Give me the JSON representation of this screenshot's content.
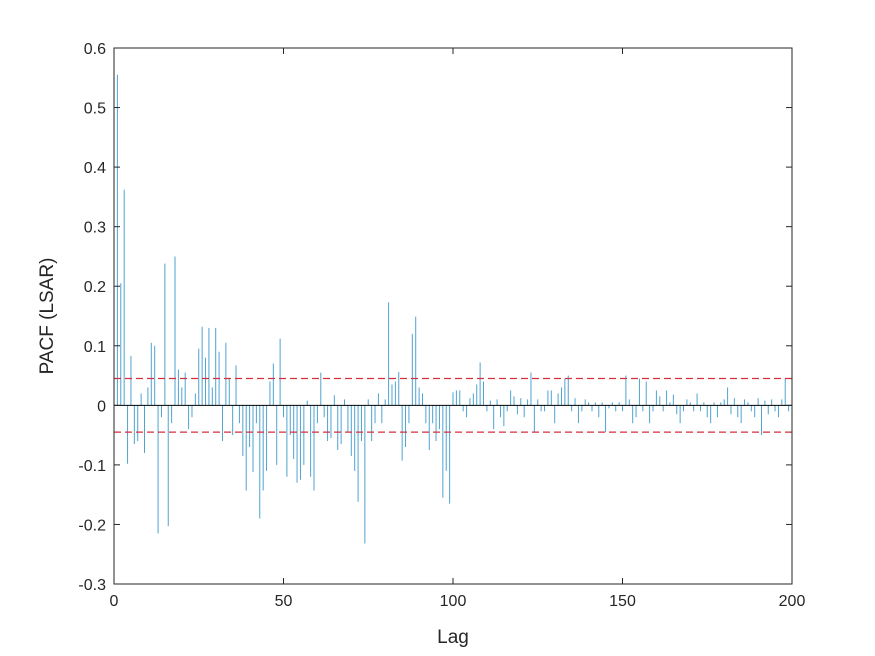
{
  "chart_data": {
    "type": "bar",
    "xlabel": "Lag",
    "ylabel": "PACF (LSAR)",
    "xlim": [
      0,
      200
    ],
    "ylim": [
      -0.3,
      0.6
    ],
    "xticks": [
      "0",
      "50",
      "100",
      "150",
      "200"
    ],
    "yticks": [
      "-0.3",
      "-0.2",
      "-0.1",
      "0",
      "0.1",
      "0.2",
      "0.3",
      "0.4",
      "0.5",
      "0.6"
    ],
    "grid": false,
    "confidence_bounds": [
      0.045,
      -0.045
    ],
    "colors": {
      "stems": "#4fa3d1",
      "bounds": "#d62f3c",
      "zero_line": "#000000",
      "axes": "#262626"
    },
    "lags": [
      1,
      2,
      3,
      4,
      5,
      6,
      7,
      8,
      9,
      10,
      11,
      12,
      13,
      14,
      15,
      16,
      17,
      18,
      19,
      20,
      21,
      22,
      23,
      24,
      25,
      26,
      27,
      28,
      29,
      30,
      31,
      32,
      33,
      34,
      35,
      36,
      37,
      38,
      39,
      40,
      41,
      42,
      43,
      44,
      45,
      46,
      47,
      48,
      49,
      50,
      51,
      52,
      53,
      54,
      55,
      56,
      57,
      58,
      59,
      60,
      61,
      62,
      63,
      64,
      65,
      66,
      67,
      68,
      69,
      70,
      71,
      72,
      73,
      74,
      75,
      76,
      77,
      78,
      79,
      80,
      81,
      82,
      83,
      84,
      85,
      86,
      87,
      88,
      89,
      90,
      91,
      92,
      93,
      94,
      95,
      96,
      97,
      98,
      99,
      100,
      101,
      102,
      103,
      104,
      105,
      106,
      107,
      108,
      109,
      110,
      111,
      112,
      113,
      114,
      115,
      116,
      117,
      118,
      119,
      120,
      121,
      122,
      123,
      124,
      125,
      126,
      127,
      128,
      129,
      130,
      131,
      132,
      133,
      134,
      135,
      136,
      137,
      138,
      139,
      140,
      141,
      142,
      143,
      144,
      145,
      146,
      147,
      148,
      149,
      150,
      151,
      152,
      153,
      154,
      155,
      156,
      157,
      158,
      159,
      160,
      161,
      162,
      163,
      164,
      165,
      166,
      167,
      168,
      169,
      170,
      171,
      172,
      173,
      174,
      175,
      176,
      177,
      178,
      179,
      180,
      181,
      182,
      183,
      184,
      185,
      186,
      187,
      188,
      189,
      190,
      191,
      192,
      193,
      194,
      195,
      196,
      197,
      198,
      199,
      200
    ],
    "values": [
      0.555,
      0.205,
      0.362,
      -0.098,
      0.083,
      -0.065,
      -0.06,
      0.02,
      -0.08,
      0.03,
      0.105,
      0.1,
      -0.215,
      -0.02,
      0.238,
      -0.203,
      -0.03,
      0.25,
      0.06,
      0.03,
      0.055,
      -0.04,
      -0.02,
      0.02,
      0.095,
      0.132,
      0.08,
      0.13,
      0.03,
      0.13,
      0.09,
      -0.06,
      0.105,
      0.045,
      -0.05,
      0.067,
      -0.03,
      -0.085,
      -0.143,
      -0.07,
      -0.112,
      -0.03,
      -0.19,
      -0.143,
      -0.11,
      0.04,
      0.07,
      -0.1,
      0.112,
      -0.02,
      -0.12,
      -0.05,
      -0.09,
      -0.13,
      -0.125,
      -0.1,
      0.008,
      -0.12,
      -0.143,
      -0.03,
      0.055,
      -0.02,
      -0.06,
      -0.055,
      0.017,
      -0.075,
      -0.065,
      0.01,
      -0.045,
      -0.085,
      -0.11,
      -0.162,
      -0.06,
      -0.232,
      0.01,
      -0.06,
      -0.03,
      0.02,
      -0.03,
      0.01,
      0.173,
      0.035,
      0.04,
      0.056,
      -0.093,
      -0.07,
      -0.03,
      0.12,
      0.149,
      0.03,
      0.02,
      -0.03,
      -0.075,
      -0.03,
      -0.06,
      -0.04,
      -0.155,
      -0.11,
      -0.165,
      0.022,
      0.025,
      0.025,
      -0.01,
      -0.02,
      0.012,
      0.02,
      0.035,
      0.072,
      0.04,
      -0.01,
      0.008,
      -0.04,
      0.01,
      -0.02,
      -0.035,
      -0.01,
      0.025,
      0.015,
      -0.015,
      0.012,
      -0.02,
      0.01,
      0.055,
      -0.045,
      0.01,
      -0.01,
      -0.01,
      0.025,
      0.025,
      -0.03,
      0.02,
      0.03,
      0.045,
      0.05,
      -0.01,
      0.012,
      -0.03,
      -0.01,
      0.01,
      0.005,
      -0.01,
      0.005,
      -0.02,
      0.005,
      -0.045,
      -0.005,
      0.005,
      -0.01,
      0.005,
      -0.01,
      0.05,
      0.01,
      -0.03,
      -0.02,
      0.045,
      -0.01,
      0.04,
      -0.03,
      -0.01,
      0.025,
      0.015,
      -0.01,
      0.025,
      0.005,
      0.018,
      -0.015,
      -0.03,
      -0.01,
      0.01,
      0.005,
      -0.01,
      0.02,
      -0.01,
      0.005,
      -0.02,
      -0.03,
      0.005,
      -0.02,
      0.005,
      0.01,
      0.03,
      -0.015,
      0.012,
      -0.02,
      -0.03,
      0.01,
      0.005,
      -0.01,
      -0.02,
      0.012,
      -0.05,
      0.008,
      -0.015,
      0.01,
      -0.01,
      -0.02,
      0.01,
      0.045,
      -0.01,
      -0.02
    ]
  }
}
